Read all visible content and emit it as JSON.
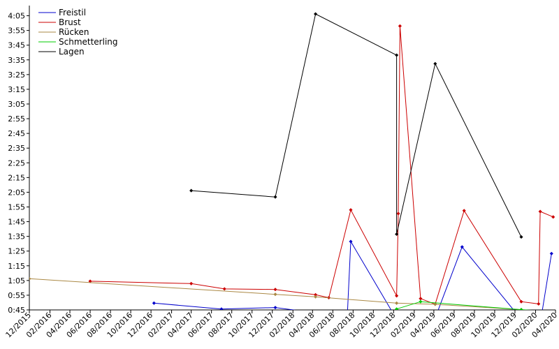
{
  "chart_data": {
    "type": "line",
    "title": "",
    "xlabel": "",
    "ylabel": "",
    "grid": false,
    "legend_position": "top-left",
    "xlim": [
      "2015-12-01",
      "2020-04-01"
    ],
    "ylim": [
      45,
      250
    ],
    "x_ticks": [
      "12/2015",
      "02/2016",
      "04/2016",
      "06/2016",
      "08/2016",
      "10/2016",
      "12/2016",
      "02/2017",
      "04/2017",
      "06/2017",
      "08/2017",
      "10/2017",
      "12/2017",
      "02/2018",
      "04/2018",
      "06/2018",
      "08/2018",
      "10/2018",
      "12/2018",
      "02/2019",
      "04/2019",
      "06/2019",
      "08/2019",
      "10/2019",
      "12/2019",
      "02/2020",
      "04/2020"
    ],
    "y_ticks": [
      {
        "value": 45,
        "label": "0:45"
      },
      {
        "value": 55,
        "label": "0:55"
      },
      {
        "value": 65,
        "label": "1:05"
      },
      {
        "value": 75,
        "label": "1:15"
      },
      {
        "value": 85,
        "label": "1:25"
      },
      {
        "value": 95,
        "label": "1:35"
      },
      {
        "value": 105,
        "label": "1:45"
      },
      {
        "value": 115,
        "label": "1:55"
      },
      {
        "value": 125,
        "label": "2:05"
      },
      {
        "value": 135,
        "label": "2:15"
      },
      {
        "value": 145,
        "label": "2:25"
      },
      {
        "value": 155,
        "label": "2:35"
      },
      {
        "value": 165,
        "label": "2:45"
      },
      {
        "value": 175,
        "label": "2:55"
      },
      {
        "value": 185,
        "label": "3:05"
      },
      {
        "value": 195,
        "label": "3:15"
      },
      {
        "value": 205,
        "label": "3:25"
      },
      {
        "value": 215,
        "label": "3:35"
      },
      {
        "value": 225,
        "label": "3:45"
      },
      {
        "value": 235,
        "label": "3:55"
      },
      {
        "value": 245,
        "label": "4:05"
      }
    ],
    "series": [
      {
        "name": "Freistil",
        "color": "#0000cc",
        "points": [
          {
            "x": "2016-12-10",
            "y": 49.6
          },
          {
            "x": "2017-07-01",
            "y": 45.6
          },
          {
            "x": "2017-12-10",
            "y": 46.6
          },
          {
            "x": "2018-04-10",
            "y": 43.0
          },
          {
            "x": "2018-05-20",
            "y": 42.6
          },
          {
            "x": "2018-07-15",
            "y": 42.6
          },
          {
            "x": "2018-07-25",
            "y": 91.5
          },
          {
            "x": "2018-12-10",
            "y": 38.6
          },
          {
            "x": "2019-02-20",
            "y": 39.7
          },
          {
            "x": "2019-03-05",
            "y": 37.1
          },
          {
            "x": "2019-04-05",
            "y": 39.5
          },
          {
            "x": "2019-06-25",
            "y": 87.8
          },
          {
            "x": "2019-12-20",
            "y": 38.6
          },
          {
            "x": "2020-02-15",
            "y": 35.8
          },
          {
            "x": "2020-03-20",
            "y": 83.3
          }
        ]
      },
      {
        "name": "Brust",
        "color": "#cc0000",
        "points": [
          {
            "x": "2016-06-01",
            "y": 64.5
          },
          {
            "x": "2017-04-01",
            "y": 62.9
          },
          {
            "x": "2017-07-10",
            "y": 59.3
          },
          {
            "x": "2017-12-10",
            "y": 58.9
          },
          {
            "x": "2018-04-10",
            "y": 55.3
          },
          {
            "x": "2018-05-20",
            "y": 53.3
          },
          {
            "x": "2018-07-25",
            "y": 113.0
          },
          {
            "x": "2018-12-10",
            "y": 54.6
          },
          {
            "x": "2018-12-15",
            "y": 110.5
          },
          {
            "x": "2018-12-20",
            "y": 238.0
          },
          {
            "x": "2019-02-20",
            "y": 52.7
          },
          {
            "x": "2019-04-05",
            "y": 48.9
          },
          {
            "x": "2019-07-01",
            "y": 112.5
          },
          {
            "x": "2019-12-20",
            "y": 50.6
          },
          {
            "x": "2020-02-10",
            "y": 49.1
          },
          {
            "x": "2020-02-15",
            "y": 111.9
          },
          {
            "x": "2020-03-25",
            "y": 108.2
          }
        ]
      },
      {
        "name": "Rücken",
        "color": "#aa8844",
        "points": [
          {
            "x": "2015-12-01",
            "y": 66.2
          },
          {
            "x": "2017-12-10",
            "y": 55.6
          },
          {
            "x": "2018-04-10",
            "y": 53.9
          },
          {
            "x": "2018-12-10",
            "y": 49.6
          },
          {
            "x": "2019-04-05",
            "y": 48.8
          },
          {
            "x": "2019-12-20",
            "y": 45.2
          }
        ]
      },
      {
        "name": "Schmetterling",
        "color": "#00cc00",
        "points": [
          {
            "x": "2018-12-10",
            "y": 45.6
          },
          {
            "x": "2019-02-20",
            "y": 50.6
          },
          {
            "x": "2019-12-20",
            "y": 45.2
          },
          {
            "x": "2020-03-25",
            "y": 43.9
          }
        ]
      },
      {
        "name": "Lagen",
        "color": "#000000",
        "points": [
          {
            "x": "2017-04-01",
            "y": 126.1
          },
          {
            "x": "2017-12-10",
            "y": 121.8
          },
          {
            "x": "2018-04-10",
            "y": 246.2
          },
          {
            "x": "2018-12-10",
            "y": 218.2
          },
          {
            "x": "2018-12-10",
            "y": 96.5
          },
          {
            "x": "2019-04-05",
            "y": 212.4
          },
          {
            "x": "2019-12-20",
            "y": 94.6
          }
        ]
      }
    ]
  }
}
